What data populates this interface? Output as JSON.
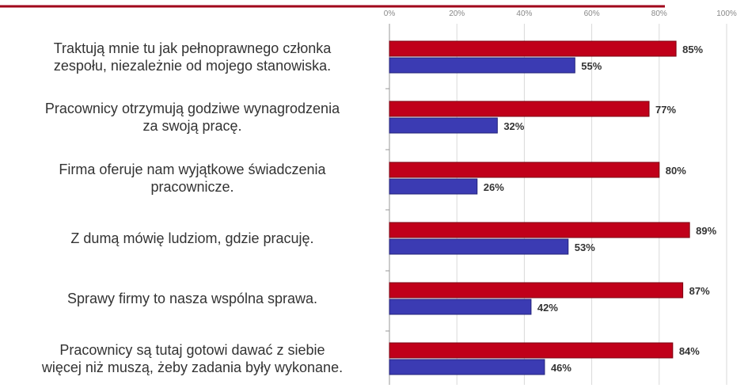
{
  "chart_data": {
    "type": "bar",
    "orientation": "horizontal",
    "categories": [
      "Traktują mnie tu jak pełnoprawnego członka\nzespołu, niezależnie od mojego stanowiska.",
      "Pracownicy otrzymują godziwe wynagrodzenia\nza swoją pracę.",
      "Firma oferuje nam wyjątkowe świadczenia\npracownicze.",
      "Z dumą mówię ludziom, gdzie pracuję.",
      "Sprawy firmy to nasza wspólna sprawa.",
      "Pracownicy są tutaj gotowi dawać z siebie\nwięcej niż muszą, żeby zadania były wykonane."
    ],
    "series": [
      {
        "values": [
          85,
          77,
          80,
          89,
          87,
          84
        ],
        "labels": [
          "85%",
          "77%",
          "80%",
          "89%",
          "87%",
          "84%"
        ]
      },
      {
        "values": [
          55,
          32,
          26,
          53,
          42,
          46
        ],
        "labels": [
          "55%",
          "32%",
          "26%",
          "53%",
          "42%",
          "46%"
        ]
      }
    ],
    "x_ticks": [
      "0%",
      "20%",
      "40%",
      "60%",
      "80%",
      "100%"
    ],
    "xlim": [
      0,
      100
    ],
    "grid": true,
    "colors": {
      "series_1": "#c0001a",
      "series_2": "#3b3bb3",
      "grid": "#d9d9d9",
      "axis": "#999999",
      "top_rule": "#a0001a"
    }
  }
}
